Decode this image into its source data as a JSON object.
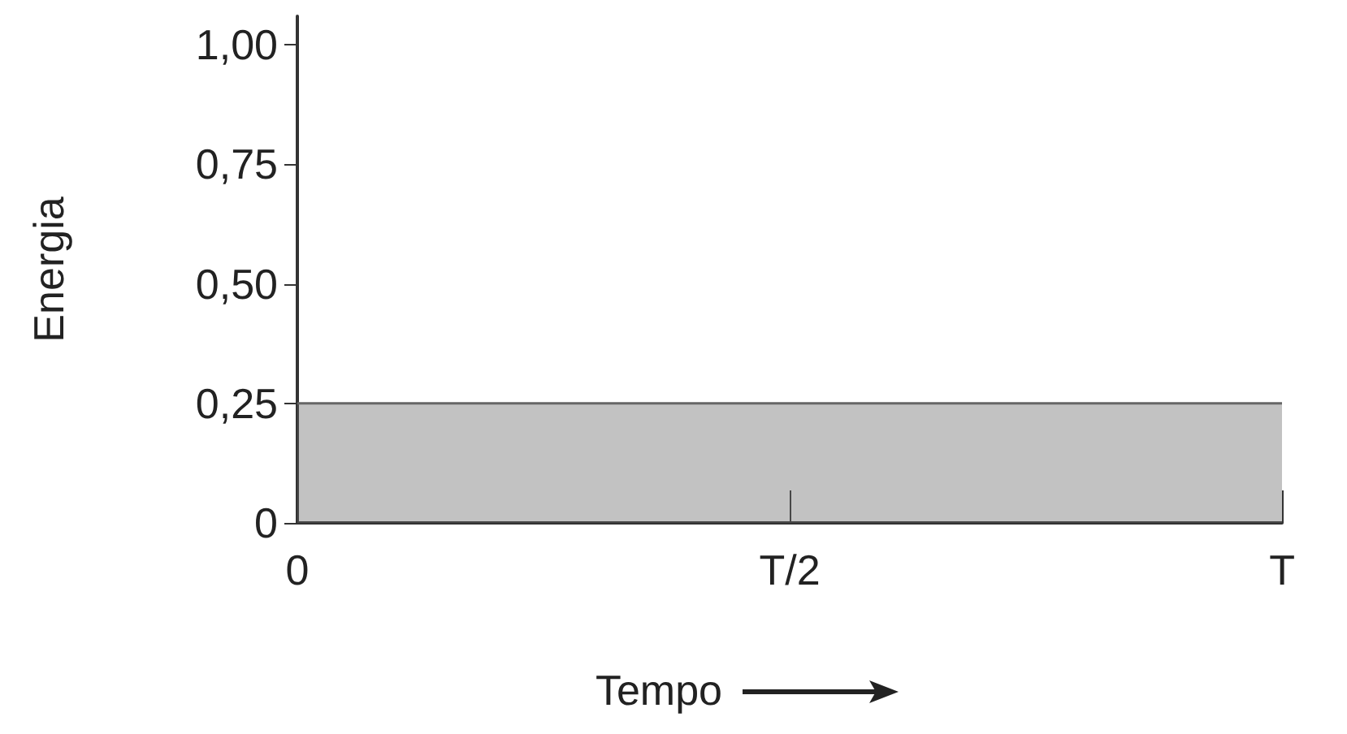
{
  "chart_data": {
    "type": "area",
    "xlabel": "Tempo",
    "ylabel": "Energia",
    "categories": [
      "0",
      "T/2",
      "T"
    ],
    "series": [
      {
        "color": "#666666",
        "values": [
          0.25,
          0.25,
          0.25
        ]
      }
    ],
    "ylim": [
      0,
      1.06
    ],
    "yticks": [
      0,
      {
        "value": 0.25,
        "label": "0,25"
      },
      {
        "value": 0.5,
        "label": "0,50"
      },
      {
        "value": 0.75,
        "label": "0,75"
      },
      {
        "value": 1,
        "label": "1,00"
      }
    ],
    "grid": false,
    "marker": "none"
  }
}
